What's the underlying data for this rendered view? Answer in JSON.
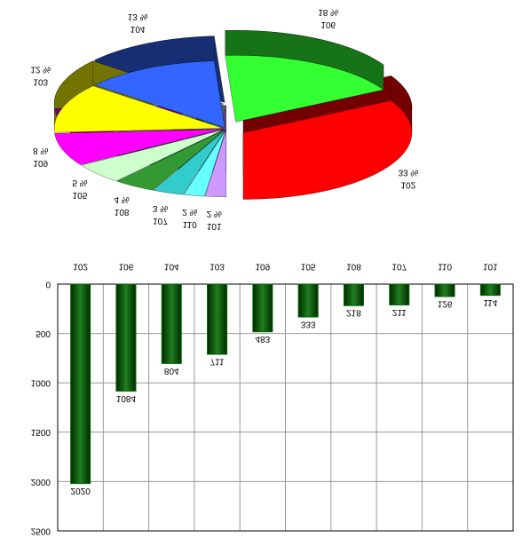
{
  "chart_data": [
    {
      "type": "pie",
      "categories": [
        "102",
        "106",
        "104",
        "103",
        "109",
        "105",
        "108",
        "107",
        "110",
        "101"
      ],
      "values": [
        33,
        18,
        13,
        12,
        8,
        5,
        4,
        3,
        2,
        2
      ],
      "value_labels": [
        "33 %",
        "18 %",
        "13 %",
        "12 %",
        "8 %",
        "5 %",
        "4 %",
        "3 %",
        "2 %",
        "2 %"
      ],
      "colors": [
        "#ff0000",
        "#33ff33",
        "#3366ff",
        "#ffff00",
        "#ff00ff",
        "#ccffcc",
        "#339933",
        "#33cccc",
        "#66ffff",
        "#cc99ff"
      ]
    },
    {
      "type": "bar",
      "categories": [
        "102",
        "106",
        "104",
        "103",
        "109",
        "105",
        "108",
        "107",
        "110",
        "101"
      ],
      "values": [
        2020,
        1084,
        804,
        711,
        483,
        333,
        218,
        211,
        126,
        114
      ],
      "color": "#006600",
      "ylim": [
        0,
        2500
      ],
      "yticks": [
        0,
        500,
        1000,
        1500,
        2000,
        2500
      ],
      "grid": true
    }
  ]
}
